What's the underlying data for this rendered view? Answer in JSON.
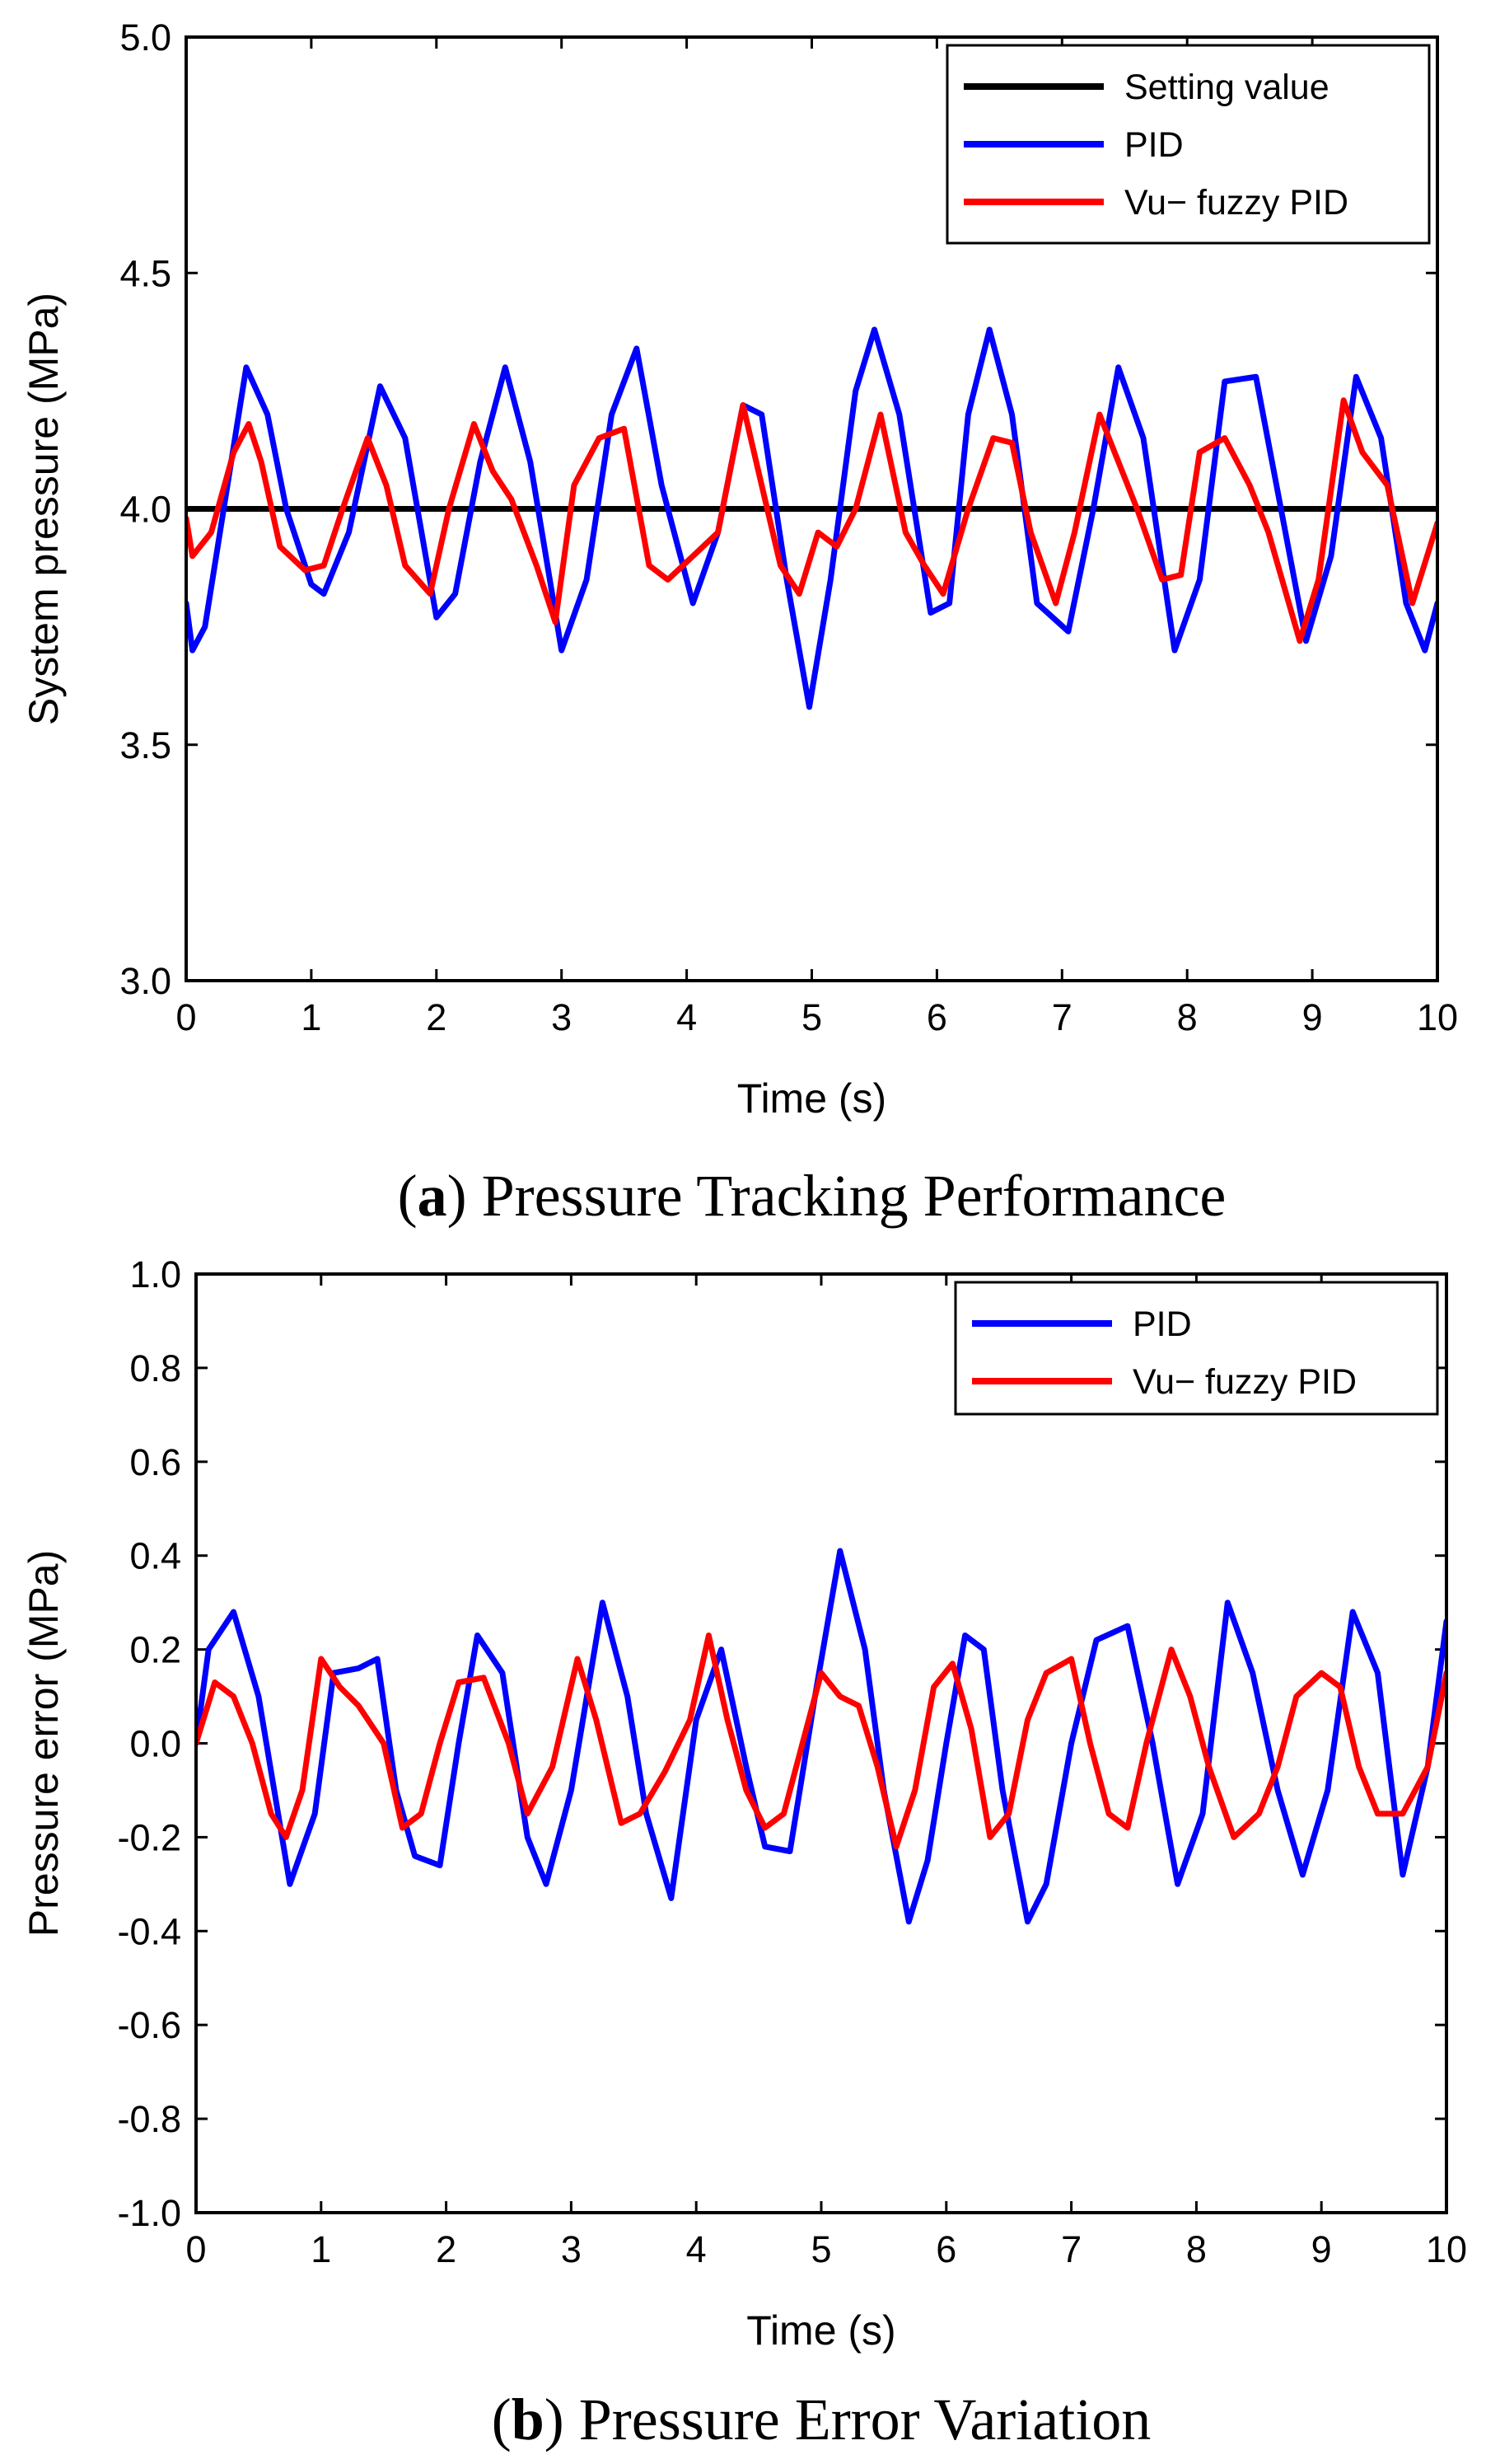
{
  "charts": [
    {
      "caption": {
        "prefix": "(",
        "letter": "a",
        "text": ") Pressure Tracking Performance"
      },
      "xlabel": "Time (s)",
      "ylabel": "System pressure (MPa)",
      "xlim": [
        0,
        10
      ],
      "ylim": [
        3.0,
        5.0
      ],
      "xticks": [
        "0",
        "1",
        "2",
        "3",
        "4",
        "5",
        "6",
        "7",
        "8",
        "9",
        "10"
      ],
      "yticks": [
        "3.0",
        "3.5",
        "4.0",
        "4.5",
        "5.0"
      ],
      "legend": [
        "Setting value",
        "PID",
        "Vu− fuzzy PID"
      ]
    },
    {
      "caption": {
        "prefix": "(",
        "letter": "b",
        "text": ") Pressure Error Variation"
      },
      "xlabel": "Time (s)",
      "ylabel": "Pressure error (MPa)",
      "xlim": [
        0,
        10
      ],
      "ylim": [
        -1.0,
        1.0
      ],
      "xticks": [
        "0",
        "1",
        "2",
        "3",
        "4",
        "5",
        "6",
        "7",
        "8",
        "9",
        "10"
      ],
      "yticks": [
        "-1.0",
        "-0.8",
        "-0.6",
        "-0.4",
        "-0.2",
        "0.0",
        "0.2",
        "0.4",
        "0.6",
        "0.8",
        "1.0"
      ],
      "legend": [
        "PID",
        "Vu− fuzzy PID"
      ]
    }
  ],
  "chart_data": [
    {
      "type": "line",
      "title": "Pressure Tracking Performance",
      "xlabel": "Time (s)",
      "ylabel": "System pressure (MPa)",
      "xlim": [
        0,
        10
      ],
      "ylim": [
        3.0,
        5.0
      ],
      "grid": false,
      "legend_position": "top-right",
      "series": [
        {
          "name": "Setting value",
          "color": "#000000",
          "x": [
            0,
            10
          ],
          "y": [
            4.0,
            4.0
          ]
        },
        {
          "name": "PID",
          "color": "#0000ff",
          "x": [
            0,
            0.05,
            0.15,
            0.3,
            0.48,
            0.65,
            0.8,
            1.0,
            1.1,
            1.3,
            1.55,
            1.75,
            2.0,
            2.15,
            2.35,
            2.55,
            2.75,
            3.0,
            3.2,
            3.4,
            3.6,
            3.8,
            4.05,
            4.25,
            4.45,
            4.6,
            4.8,
            4.98,
            5.15,
            5.35,
            5.5,
            5.7,
            5.95,
            6.1,
            6.25,
            6.42,
            6.6,
            6.8,
            7.05,
            7.25,
            7.45,
            7.65,
            7.9,
            8.1,
            8.3,
            8.55,
            8.75,
            8.95,
            9.15,
            9.35,
            9.55,
            9.75,
            9.9,
            10.0
          ],
          "y": [
            3.8,
            3.7,
            3.75,
            4.0,
            4.3,
            4.2,
            4.0,
            3.84,
            3.82,
            3.95,
            4.26,
            4.15,
            3.77,
            3.82,
            4.1,
            4.3,
            4.1,
            3.7,
            3.85,
            4.2,
            4.34,
            4.05,
            3.8,
            3.95,
            4.22,
            4.2,
            3.85,
            3.58,
            3.85,
            4.25,
            4.38,
            4.2,
            3.78,
            3.8,
            4.2,
            4.38,
            4.2,
            3.8,
            3.74,
            4.0,
            4.3,
            4.15,
            3.7,
            3.85,
            4.27,
            4.28,
            4.0,
            3.72,
            3.9,
            4.28,
            4.15,
            3.8,
            3.7,
            3.8
          ]
        },
        {
          "name": "Vu− fuzzy PID",
          "color": "#ff0000",
          "x": [
            0,
            0.05,
            0.2,
            0.38,
            0.5,
            0.6,
            0.75,
            0.95,
            1.1,
            1.25,
            1.45,
            1.6,
            1.75,
            1.95,
            2.1,
            2.3,
            2.45,
            2.6,
            2.8,
            2.95,
            3.1,
            3.3,
            3.5,
            3.7,
            3.85,
            4.05,
            4.25,
            4.45,
            4.6,
            4.75,
            4.9,
            5.05,
            5.2,
            5.35,
            5.55,
            5.75,
            5.9,
            6.05,
            6.25,
            6.45,
            6.6,
            6.75,
            6.95,
            7.1,
            7.3,
            7.45,
            7.6,
            7.8,
            7.95,
            8.1,
            8.3,
            8.5,
            8.65,
            8.9,
            9.05,
            9.25,
            9.4,
            9.6,
            9.8,
            10.0
          ],
          "y": [
            3.98,
            3.9,
            3.95,
            4.12,
            4.18,
            4.1,
            3.92,
            3.87,
            3.88,
            4.0,
            4.15,
            4.05,
            3.88,
            3.82,
            4.0,
            4.18,
            4.08,
            4.02,
            3.88,
            3.76,
            4.05,
            4.15,
            4.17,
            3.88,
            3.85,
            3.9,
            3.95,
            4.22,
            4.05,
            3.88,
            3.82,
            3.95,
            3.92,
            4.0,
            4.2,
            3.95,
            3.88,
            3.82,
            4.0,
            4.15,
            4.14,
            3.95,
            3.8,
            3.95,
            4.2,
            4.1,
            4.0,
            3.85,
            3.86,
            4.12,
            4.15,
            4.05,
            3.95,
            3.72,
            3.85,
            4.23,
            4.12,
            4.05,
            3.8,
            3.97
          ]
        }
      ]
    },
    {
      "type": "line",
      "title": "Pressure Error Variation",
      "xlabel": "Time (s)",
      "ylabel": "Pressure error (MPa)",
      "xlim": [
        0,
        10
      ],
      "ylim": [
        -1.0,
        1.0
      ],
      "grid": false,
      "legend_position": "top-right",
      "series": [
        {
          "name": "PID",
          "color": "#0000ff",
          "x": [
            0,
            0.1,
            0.3,
            0.5,
            0.75,
            0.95,
            1.1,
            1.3,
            1.45,
            1.6,
            1.75,
            1.95,
            2.1,
            2.25,
            2.45,
            2.65,
            2.8,
            3.0,
            3.25,
            3.45,
            3.6,
            3.8,
            4.0,
            4.2,
            4.4,
            4.55,
            4.75,
            4.95,
            5.15,
            5.35,
            5.5,
            5.7,
            5.85,
            6.0,
            6.15,
            6.3,
            6.45,
            6.65,
            6.8,
            7.0,
            7.2,
            7.45,
            7.65,
            7.85,
            8.05,
            8.25,
            8.45,
            8.65,
            8.85,
            9.05,
            9.25,
            9.45,
            9.65,
            9.85,
            10.0
          ],
          "y": [
            0.0,
            0.2,
            0.28,
            0.1,
            -0.3,
            -0.15,
            0.15,
            0.16,
            0.18,
            -0.1,
            -0.24,
            -0.26,
            0.0,
            0.23,
            0.15,
            -0.2,
            -0.3,
            -0.1,
            0.3,
            0.1,
            -0.15,
            -0.33,
            0.05,
            0.2,
            -0.05,
            -0.22,
            -0.23,
            0.1,
            0.41,
            0.2,
            -0.1,
            -0.38,
            -0.25,
            0.0,
            0.23,
            0.2,
            -0.1,
            -0.38,
            -0.3,
            0.0,
            0.22,
            0.25,
            0.0,
            -0.3,
            -0.15,
            0.3,
            0.15,
            -0.1,
            -0.28,
            -0.1,
            0.28,
            0.15,
            -0.28,
            -0.05,
            0.26
          ]
        },
        {
          "name": "Vu− fuzzy PID",
          "color": "#ff0000",
          "x": [
            0,
            0.15,
            0.3,
            0.45,
            0.6,
            0.72,
            0.85,
            1.0,
            1.15,
            1.3,
            1.5,
            1.65,
            1.8,
            1.95,
            2.1,
            2.3,
            2.5,
            2.65,
            2.85,
            3.05,
            3.2,
            3.4,
            3.55,
            3.75,
            3.95,
            4.1,
            4.25,
            4.4,
            4.55,
            4.7,
            4.85,
            5.0,
            5.15,
            5.3,
            5.45,
            5.6,
            5.75,
            5.9,
            6.05,
            6.2,
            6.35,
            6.5,
            6.65,
            6.8,
            7.0,
            7.15,
            7.3,
            7.45,
            7.6,
            7.8,
            7.95,
            8.1,
            8.3,
            8.5,
            8.65,
            8.8,
            9.0,
            9.15,
            9.3,
            9.45,
            9.65,
            9.85,
            10.0
          ],
          "y": [
            0.0,
            0.13,
            0.1,
            0.0,
            -0.15,
            -0.2,
            -0.1,
            0.18,
            0.12,
            0.08,
            0.0,
            -0.18,
            -0.15,
            0.0,
            0.13,
            0.14,
            0.0,
            -0.15,
            -0.05,
            0.18,
            0.05,
            -0.17,
            -0.15,
            -0.06,
            0.05,
            0.23,
            0.05,
            -0.1,
            -0.18,
            -0.15,
            0.0,
            0.15,
            0.1,
            0.08,
            -0.05,
            -0.22,
            -0.1,
            0.12,
            0.17,
            0.03,
            -0.2,
            -0.15,
            0.05,
            0.15,
            0.18,
            0.0,
            -0.15,
            -0.18,
            0.0,
            0.2,
            0.1,
            -0.05,
            -0.2,
            -0.15,
            -0.05,
            0.1,
            0.15,
            0.12,
            -0.05,
            -0.15,
            -0.15,
            -0.05,
            0.15
          ]
        }
      ]
    }
  ]
}
